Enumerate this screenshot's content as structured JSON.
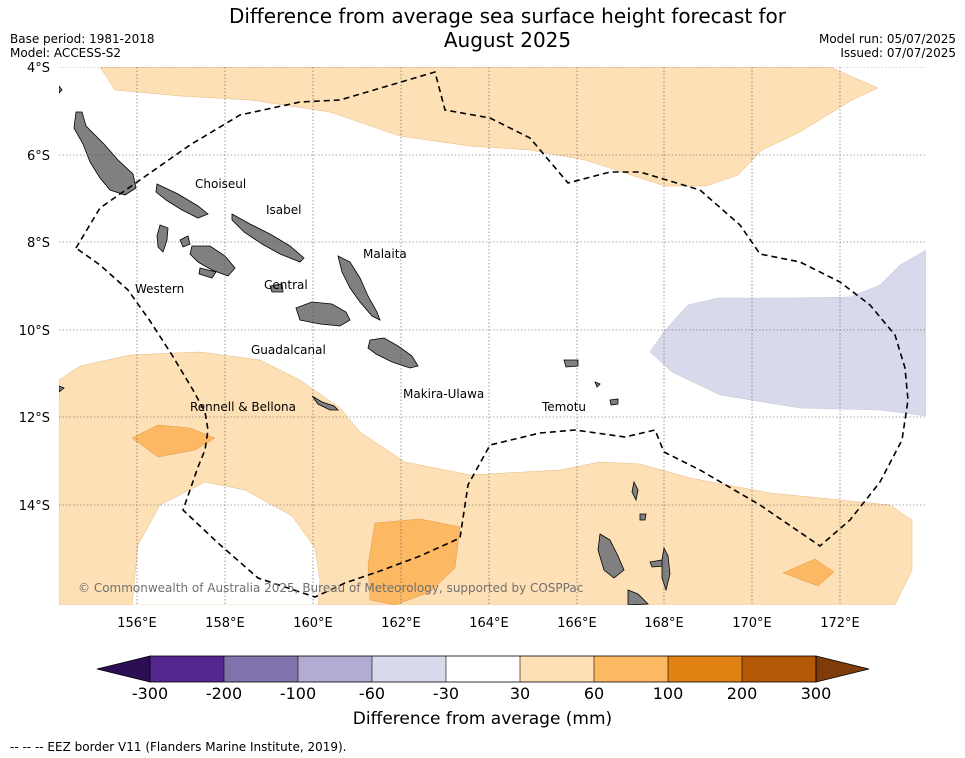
{
  "header": {
    "title_line1": "Difference from average sea surface height forecast for",
    "title_line2": "August 2025",
    "base_period": "Base period: 1981-2018",
    "model": "Model: ACCESS-S2",
    "model_run": "Model run: 05/07/2025",
    "issued": "Issued: 07/07/2025"
  },
  "map": {
    "lat_labels": [
      "4°S",
      "6°S",
      "8°S",
      "10°S",
      "12°S",
      "14°S"
    ],
    "lon_labels": [
      "156°E",
      "158°E",
      "160°E",
      "162°E",
      "164°E",
      "166°E",
      "168°E",
      "170°E",
      "172°E"
    ],
    "provinces": [
      "Choiseul",
      "Isabel",
      "Malaita",
      "Western",
      "Central",
      "Guadalcanal",
      "Makira-Ulawa",
      "Rennell & Bellona",
      "Temotu"
    ],
    "copyright": "© Commonwealth of Australia 2025, Bureau of Meteorology, supported by COSPPac",
    "land_color": "#808080"
  },
  "legend": {
    "ticks": [
      "-300",
      "-200",
      "-100",
      "-60",
      "-30",
      "30",
      "60",
      "100",
      "200",
      "300"
    ],
    "colors": [
      "#2d0e54",
      "#54278f",
      "#8073ac",
      "#b2abd2",
      "#d8daeb",
      "#ffffff",
      "#fee0b6",
      "#fdb863",
      "#e08214",
      "#b35806",
      "#7f3b08"
    ],
    "label": "Difference from average (mm)"
  },
  "footer": {
    "eez_note": "--  --  -- EEZ border V11 (Flanders Marine Institute, 2019)."
  }
}
